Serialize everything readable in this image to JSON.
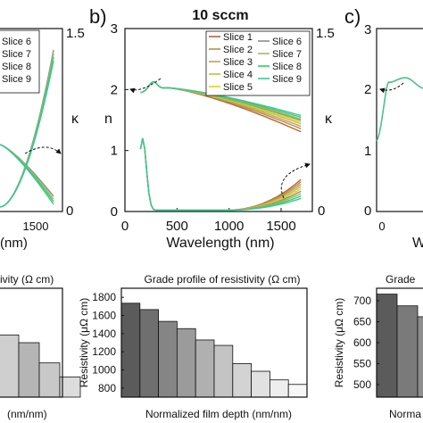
{
  "labels": {
    "panel_b": "b)",
    "panel_c": "c)"
  },
  "chart_data": [
    {
      "id": "left-top",
      "type": "line",
      "title": "",
      "xlabel": "(nm)",
      "ylabel_right": "κ",
      "x_ticks": [
        "1500"
      ],
      "y_ticks_right": [
        "0",
        "1.5"
      ],
      "legend": [
        "Slice 6",
        "Slice 7",
        "Slice 8",
        "Slice 9"
      ],
      "series": [
        {
          "name": "Slice 6",
          "color": "#8c8c8c"
        },
        {
          "name": "Slice 7",
          "color": "#a3b86a"
        },
        {
          "name": "Slice 8",
          "color": "#2fd35c"
        },
        {
          "name": "Slice 9",
          "color": "#3fc59a"
        }
      ]
    },
    {
      "id": "main-top",
      "type": "line",
      "title": "10 sccm",
      "xlabel": "Wavelength (nm)",
      "ylabel": "n",
      "ylabel_right": "κ",
      "xlim": [
        0,
        1800
      ],
      "ylim": [
        0,
        3
      ],
      "ylim_right": [
        0,
        1.5
      ],
      "x_ticks": [
        0,
        500,
        1000,
        1500
      ],
      "y_ticks": [
        0,
        1,
        2,
        3
      ],
      "y_ticks_right": [
        "0",
        "1.5"
      ],
      "legend_position": "top-right",
      "legend_col1": [
        "Slice 1",
        "Slice 2",
        "Slice 3",
        "Slice 4",
        "Slice 5"
      ],
      "legend_col2": [
        "Slice 6",
        "Slice 7",
        "Slice 8",
        "Slice 9"
      ],
      "series": [
        {
          "name": "Slice 1",
          "color": "#b0653d",
          "n_end": 1.3,
          "k_end": 0.26
        },
        {
          "name": "Slice 2",
          "color": "#c08a4a",
          "n_end": 1.35,
          "k_end": 0.24
        },
        {
          "name": "Slice 3",
          "color": "#bfa052",
          "n_end": 1.39,
          "k_end": 0.22
        },
        {
          "name": "Slice 4",
          "color": "#b9c43d",
          "n_end": 1.43,
          "k_end": 0.2
        },
        {
          "name": "Slice 5",
          "color": "#d8d520",
          "n_end": 1.46,
          "k_end": 0.18
        },
        {
          "name": "Slice 6",
          "color": "#8c8c8c",
          "n_end": 1.49,
          "k_end": 0.16
        },
        {
          "name": "Slice 7",
          "color": "#a3b86a",
          "n_end": 1.51,
          "k_end": 0.14
        },
        {
          "name": "Slice 8",
          "color": "#2fd35c",
          "n_end": 1.54,
          "k_end": 0.12
        },
        {
          "name": "Slice 9",
          "color": "#3fc59a",
          "n_end": 1.57,
          "k_end": 0.1
        }
      ]
    },
    {
      "id": "right-top",
      "type": "line",
      "title": "",
      "xlabel": "W",
      "ylabel": "n",
      "y_ticks": [
        "0",
        "1",
        "2",
        "3"
      ],
      "x_ticks": [
        "0"
      ]
    },
    {
      "id": "left-bottom",
      "type": "bar",
      "title": "ivity (Ω cm)",
      "xlabel": "(nm/nm)",
      "values": [
        1200,
        1150,
        1020,
        930
      ],
      "colors": [
        "#cfcfcf",
        "#b5b5b5",
        "#c8c8c8",
        "#dcdcdc"
      ],
      "ylim": [
        800,
        1500
      ]
    },
    {
      "id": "main-bottom",
      "type": "bar",
      "title": "Grade profile of resistivity (Ω cm)",
      "xlabel": "Normalized film depth  (nm/nm)",
      "ylabel": "Resistivity (μΩ cm)",
      "ylim": [
        700,
        1900
      ],
      "y_ticks": [
        800,
        1000,
        1200,
        1400,
        1600,
        1800
      ],
      "values": [
        1735,
        1665,
        1535,
        1455,
        1330,
        1270,
        1070,
        985,
        890,
        840
      ],
      "colors": [
        "#5b5b5b",
        "#6f6f6f",
        "#858585",
        "#9b9b9b",
        "#b0b0b0",
        "#c4c4c4",
        "#d3d3d3",
        "#e1e1e1",
        "#eeeeee",
        "#f7f7f7"
      ]
    },
    {
      "id": "right-bottom",
      "type": "bar",
      "title": "Grade",
      "xlabel": "Norma",
      "ylabel": "Resistivity (μΩ cm)",
      "ylim": [
        470,
        730
      ],
      "y_ticks": [
        500,
        550,
        600,
        650,
        700
      ],
      "values": [
        716,
        688,
        662
      ],
      "colors": [
        "#5b5b5b",
        "#7a7a7a",
        "#8e8e8e"
      ]
    }
  ]
}
